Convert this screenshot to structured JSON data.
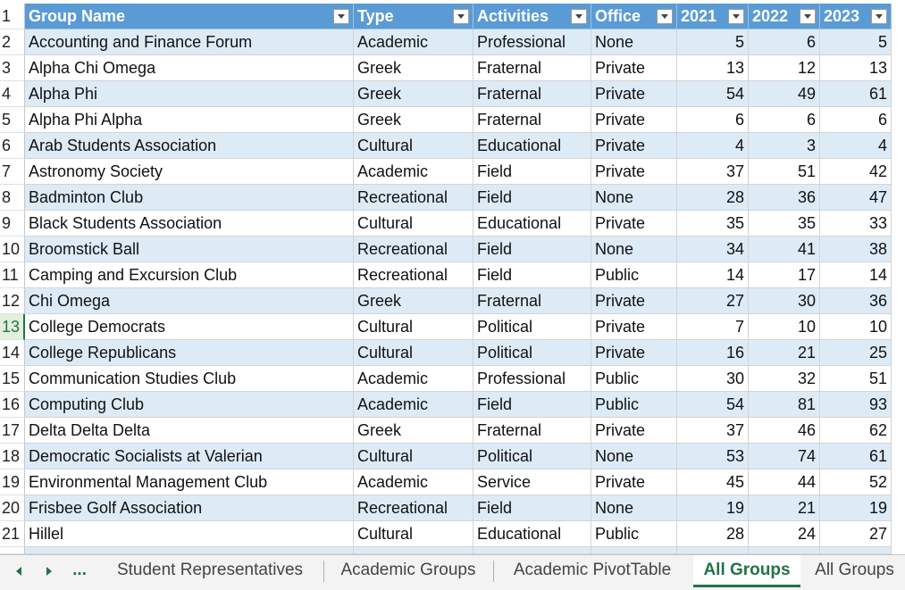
{
  "column_headers": [
    "Group Name",
    "Type",
    "Activities",
    "Office",
    "2021",
    "2022",
    "2023"
  ],
  "row_numbers": [
    1,
    2,
    3,
    4,
    5,
    6,
    7,
    8,
    9,
    10,
    11,
    12,
    13,
    14,
    15,
    16,
    17,
    18,
    19,
    20,
    21
  ],
  "rows": [
    [
      "Accounting and Finance Forum",
      "Academic",
      "Professional",
      "None",
      5,
      6,
      5
    ],
    [
      "Alpha Chi Omega",
      "Greek",
      "Fraternal",
      "Private",
      13,
      12,
      13
    ],
    [
      "Alpha Phi",
      "Greek",
      "Fraternal",
      "Private",
      54,
      49,
      61
    ],
    [
      "Alpha Phi Alpha",
      "Greek",
      "Fraternal",
      "Private",
      6,
      6,
      6
    ],
    [
      "Arab Students Association",
      "Cultural",
      "Educational",
      "Private",
      4,
      3,
      4
    ],
    [
      "Astronomy Society",
      "Academic",
      "Field",
      "Private",
      37,
      51,
      42
    ],
    [
      "Badminton Club",
      "Recreational",
      "Field",
      "None",
      28,
      36,
      47
    ],
    [
      "Black Students Association",
      "Cultural",
      "Educational",
      "Private",
      35,
      35,
      33
    ],
    [
      "Broomstick Ball",
      "Recreational",
      "Field",
      "None",
      34,
      41,
      38
    ],
    [
      "Camping and Excursion Club",
      "Recreational",
      "Field",
      "Public",
      14,
      17,
      14
    ],
    [
      "Chi Omega",
      "Greek",
      "Fraternal",
      "Private",
      27,
      30,
      36
    ],
    [
      "College Democrats",
      "Cultural",
      "Political",
      "Private",
      7,
      10,
      10
    ],
    [
      "College Republicans",
      "Cultural",
      "Political",
      "Private",
      16,
      21,
      25
    ],
    [
      "Communication Studies Club",
      "Academic",
      "Professional",
      "Public",
      30,
      32,
      51
    ],
    [
      "Computing Club",
      "Academic",
      "Field",
      "Public",
      54,
      81,
      93
    ],
    [
      "Delta Delta Delta",
      "Greek",
      "Fraternal",
      "Private",
      37,
      46,
      62
    ],
    [
      "Democratic Socialists at Valerian",
      "Cultural",
      "Political",
      "None",
      53,
      74,
      61
    ],
    [
      "Environmental Management Club",
      "Academic",
      "Service",
      "Private",
      45,
      44,
      52
    ],
    [
      "Frisbee Golf Association",
      "Recreational",
      "Field",
      "None",
      19,
      21,
      19
    ],
    [
      "Hillel",
      "Cultural",
      "Educational",
      "Public",
      28,
      24,
      27
    ]
  ],
  "sheet_tabs": {
    "overflow": "...",
    "tabs": [
      {
        "label": "Student Representatives",
        "selected": false
      },
      {
        "label": "Academic Groups",
        "selected": false
      },
      {
        "label": "Academic PivotTable",
        "selected": false
      },
      {
        "label": "All Groups",
        "selected": true
      },
      {
        "label": "All Groups",
        "selected": false
      }
    ]
  }
}
